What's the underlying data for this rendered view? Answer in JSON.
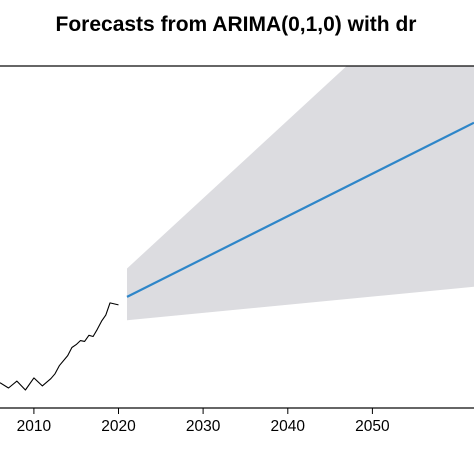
{
  "chart_data": {
    "type": "line",
    "title": "Forecasts from ARIMA(0,1,0) with dr",
    "xlabel": "",
    "ylabel": "",
    "xlim": [
      2006,
      2062
    ],
    "ylim": [
      0,
      8
    ],
    "grid": false,
    "x_ticks": [
      2010,
      2020,
      2030,
      2040,
      2050
    ],
    "x_tick_labels": [
      "2010",
      "2020",
      "2030",
      "2040",
      "2050"
    ],
    "series": [
      {
        "role": "observed",
        "color": "#000000",
        "x": [
          2006,
          2007,
          2008,
          2009,
          2010,
          2011,
          2012,
          2012.5,
          2013,
          2014,
          2014.5,
          2015,
          2015.5,
          2016,
          2016.5,
          2017,
          2017.5,
          2018,
          2018.5,
          2019,
          2020
        ],
        "y": [
          0.18,
          0.05,
          0.22,
          0.0,
          0.3,
          0.1,
          0.28,
          0.4,
          0.6,
          0.85,
          1.05,
          1.12,
          1.22,
          1.2,
          1.35,
          1.32,
          1.5,
          1.7,
          1.85,
          2.15,
          2.1
        ]
      },
      {
        "role": "point-forecast",
        "color": "#2e86c9",
        "x": [
          2021,
          2062
        ],
        "y": [
          2.3,
          6.6
        ]
      }
    ],
    "bands": [
      {
        "role": "prediction-interval",
        "color": "#dcdce0",
        "x": [
          2021,
          2062
        ],
        "lower": [
          1.72,
          2.55
        ],
        "upper": [
          3.0,
          10.9
        ]
      }
    ]
  }
}
